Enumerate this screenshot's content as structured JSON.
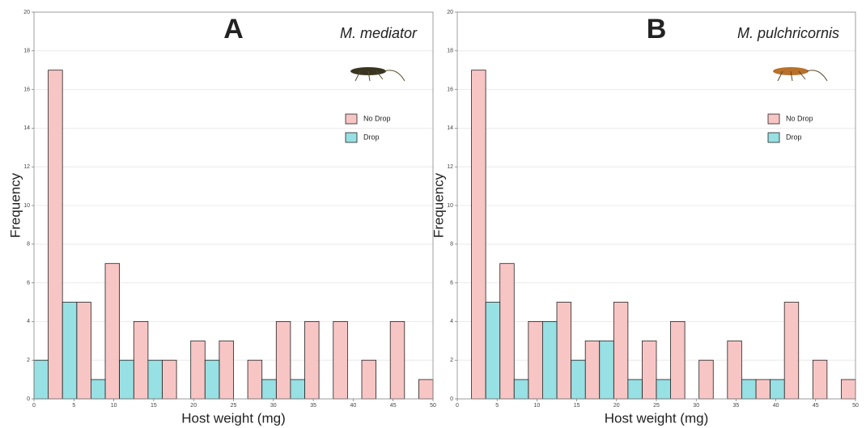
{
  "chart_data": [
    {
      "type": "histogram",
      "title": "A",
      "annotation": "M. mediator",
      "xlabel": "Host weight (mg)",
      "ylabel": "Frequency",
      "bins": [
        0,
        3.57,
        7.14,
        10.71,
        14.29,
        17.86,
        21.43,
        25,
        28.57,
        32.14,
        35.71,
        39.29,
        42.86,
        46.43,
        50
      ],
      "series": [
        {
          "name": "No Drop",
          "color": "#f8c5c5",
          "values": [
            17,
            5,
            7,
            4,
            2,
            3,
            3,
            2,
            4,
            4,
            4,
            2,
            4,
            1
          ]
        },
        {
          "name": "Drop",
          "color": "#97e0e3",
          "values": [
            2,
            5,
            1,
            2,
            2,
            0,
            2,
            0,
            1,
            1,
            0,
            0,
            0,
            0
          ]
        }
      ],
      "xlim": [
        0,
        50
      ],
      "ylim": [
        0,
        20
      ],
      "xticks": [
        0,
        5,
        10,
        15,
        20,
        25,
        30,
        35,
        40,
        45,
        50
      ],
      "yticks": [
        0,
        2,
        4,
        6,
        8,
        10,
        12,
        14,
        16,
        18,
        20
      ],
      "grid": true,
      "legend": "right"
    },
    {
      "type": "histogram",
      "title": "B",
      "annotation": "M. pulchricornis",
      "xlabel": "Host weight (mg)",
      "ylabel": "Frequency",
      "bins": [
        0,
        3.57,
        7.14,
        10.71,
        14.29,
        17.86,
        21.43,
        25,
        28.57,
        32.14,
        35.71,
        39.29,
        42.86,
        46.43,
        50
      ],
      "series": [
        {
          "name": "No Drop",
          "color": "#f8c5c5",
          "values": [
            17,
            7,
            4,
            5,
            3,
            5,
            3,
            4,
            2,
            3,
            1,
            5,
            2,
            1
          ]
        },
        {
          "name": "Drop",
          "color": "#97e0e3",
          "values": [
            0,
            5,
            1,
            4,
            2,
            3,
            1,
            1,
            0,
            0,
            1,
            1,
            0,
            0
          ]
        }
      ],
      "xlim": [
        0,
        50
      ],
      "ylim": [
        0,
        20
      ],
      "xticks": [
        0,
        5,
        10,
        15,
        20,
        25,
        30,
        35,
        40,
        45,
        50
      ],
      "yticks": [
        0,
        2,
        4,
        6,
        8,
        10,
        12,
        14,
        16,
        18,
        20
      ],
      "grid": true,
      "legend": "right"
    }
  ]
}
